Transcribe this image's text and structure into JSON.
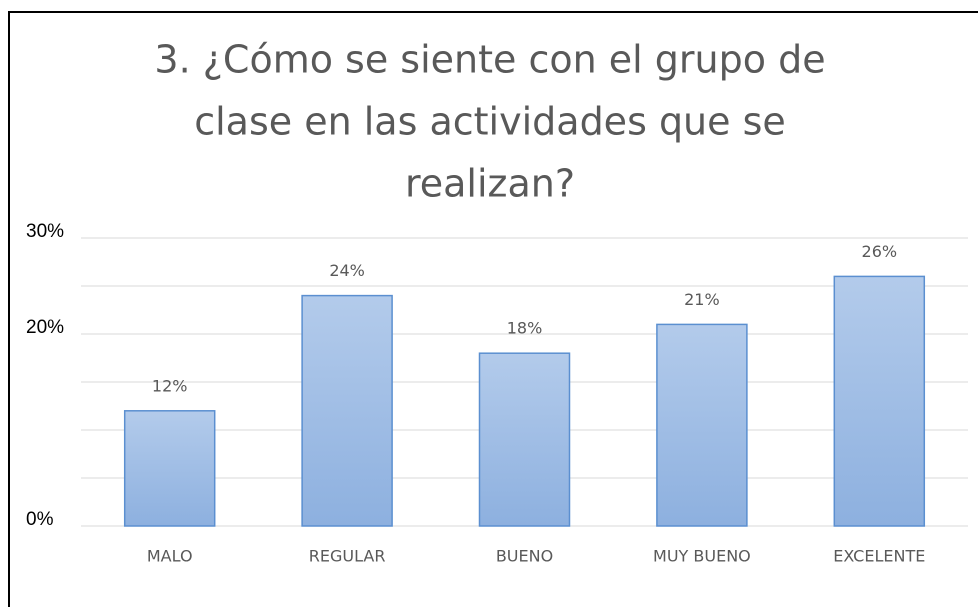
{
  "chart_data": {
    "type": "bar",
    "title": [
      "3. ¿Cómo se siente con el grupo de",
      "clase en las actividades que se",
      "realizan?"
    ],
    "categories": [
      "MALO",
      "REGULAR",
      "BUENO",
      "MUY BUENO",
      "EXCELENTE"
    ],
    "values": [
      12,
      24,
      18,
      21,
      26
    ],
    "value_labels": [
      "12%",
      "24%",
      "18%",
      "21%",
      "26%"
    ],
    "color": "#9dbce6",
    "ylim": [
      0,
      30
    ],
    "yticks": [
      {
        "value": 0,
        "label": "0%"
      },
      {
        "value": 20,
        "label": "20%"
      },
      {
        "value": 30,
        "label": "30%"
      }
    ],
    "gridlines": [
      0,
      5,
      10,
      15,
      20,
      25,
      30
    ],
    "grid": true
  }
}
